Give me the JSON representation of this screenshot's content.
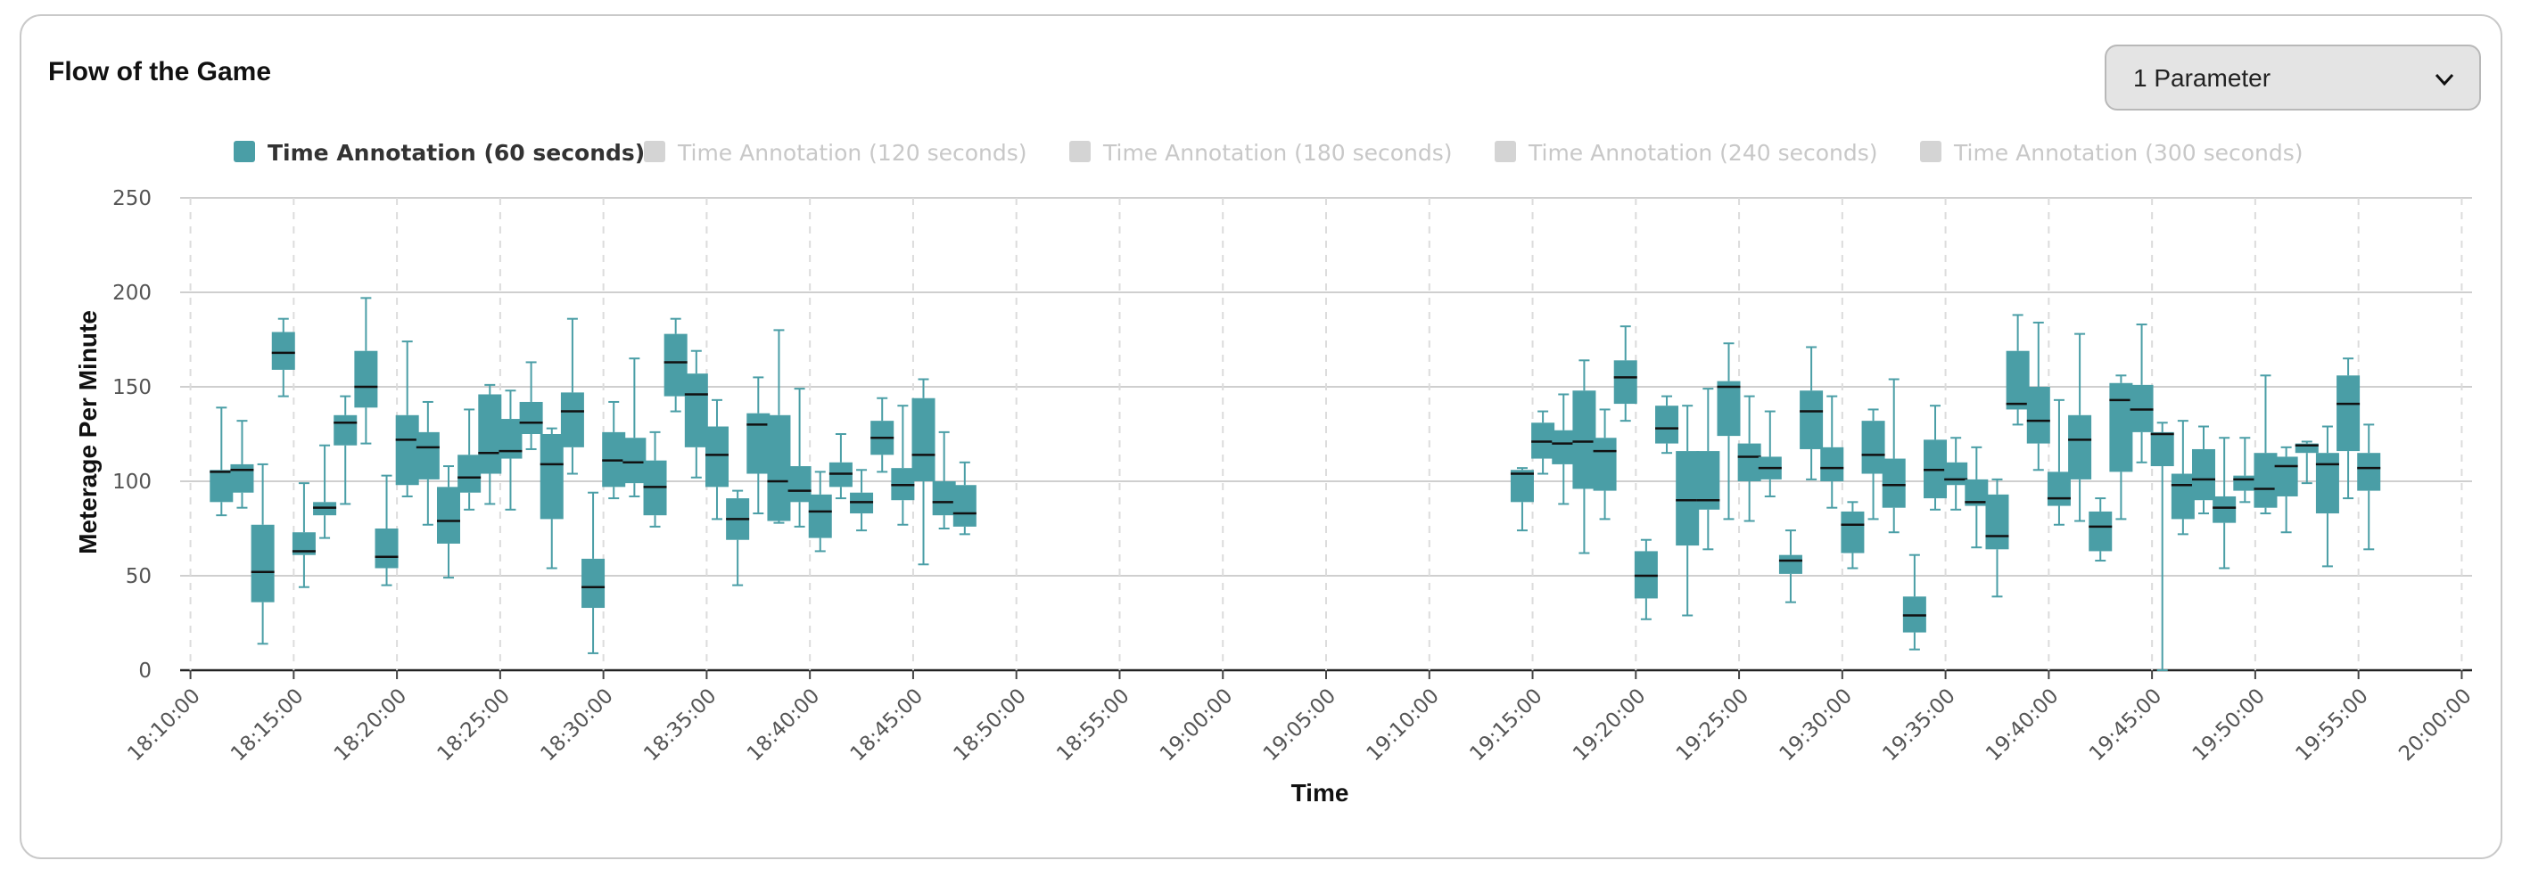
{
  "title": "Flow of the Game",
  "dropdown": {
    "value": "1 Parameter",
    "icon": "chevron-down-icon"
  },
  "colors": {
    "box": "#4a9ea6",
    "active_legend": "#4a9ea6",
    "inactive_legend": "#d4d4d4"
  },
  "chart_data": {
    "type": "box",
    "xlabel": "Time",
    "ylabel": "Meterage Per Minute",
    "ylim": [
      0,
      250
    ],
    "yticks": [
      0,
      50,
      100,
      150,
      200,
      250
    ],
    "xlim": [
      "18:09:30",
      "20:00:30"
    ],
    "xticks": [
      "18:10:00",
      "18:15:00",
      "18:20:00",
      "18:25:00",
      "18:30:00",
      "18:35:00",
      "18:40:00",
      "18:45:00",
      "18:50:00",
      "18:55:00",
      "19:00:00",
      "19:05:00",
      "19:10:00",
      "19:15:00",
      "19:20:00",
      "19:25:00",
      "19:30:00",
      "19:35:00",
      "19:40:00",
      "19:45:00",
      "19:50:00",
      "19:55:00",
      "20:00:00"
    ],
    "grid": "horizontal solid, vertical dashed",
    "legend_position": "top",
    "series": [
      {
        "name": "Time Annotation (60 seconds)",
        "active": true
      },
      {
        "name": "Time Annotation (120 seconds)",
        "active": false
      },
      {
        "name": "Time Annotation (180 seconds)",
        "active": false
      },
      {
        "name": "Time Annotation (240 seconds)",
        "active": false
      },
      {
        "name": "Time Annotation (300 seconds)",
        "active": false
      }
    ],
    "boxes": [
      {
        "t": "18:11:30",
        "min": 82,
        "q1": 89,
        "median": 105,
        "q3": 106,
        "max": 139
      },
      {
        "t": "18:12:30",
        "min": 86,
        "q1": 94,
        "median": 106,
        "q3": 109,
        "max": 132
      },
      {
        "t": "18:13:30",
        "min": 14,
        "q1": 36,
        "median": 52,
        "q3": 77,
        "max": 109
      },
      {
        "t": "18:14:30",
        "min": 145,
        "q1": 159,
        "median": 168,
        "q3": 179,
        "max": 186
      },
      {
        "t": "18:15:30",
        "min": 44,
        "q1": 61,
        "median": 63,
        "q3": 73,
        "max": 99
      },
      {
        "t": "18:16:30",
        "min": 70,
        "q1": 82,
        "median": 86,
        "q3": 89,
        "max": 119
      },
      {
        "t": "18:17:30",
        "min": 88,
        "q1": 119,
        "median": 131,
        "q3": 135,
        "max": 145
      },
      {
        "t": "18:18:30",
        "min": 120,
        "q1": 139,
        "median": 150,
        "q3": 169,
        "max": 197
      },
      {
        "t": "18:19:30",
        "min": 45,
        "q1": 54,
        "median": 60,
        "q3": 75,
        "max": 103
      },
      {
        "t": "18:20:30",
        "min": 92,
        "q1": 98,
        "median": 122,
        "q3": 135,
        "max": 174
      },
      {
        "t": "18:21:30",
        "min": 77,
        "q1": 101,
        "median": 118,
        "q3": 126,
        "max": 142
      },
      {
        "t": "18:22:30",
        "min": 49,
        "q1": 67,
        "median": 79,
        "q3": 97,
        "max": 108
      },
      {
        "t": "18:23:30",
        "min": 85,
        "q1": 94,
        "median": 102,
        "q3": 114,
        "max": 138
      },
      {
        "t": "18:24:30",
        "min": 88,
        "q1": 104,
        "median": 115,
        "q3": 146,
        "max": 151
      },
      {
        "t": "18:25:30",
        "min": 85,
        "q1": 112,
        "median": 116,
        "q3": 133,
        "max": 148
      },
      {
        "t": "18:26:30",
        "min": 117,
        "q1": 125,
        "median": 131,
        "q3": 142,
        "max": 163
      },
      {
        "t": "18:27:30",
        "min": 54,
        "q1": 80,
        "median": 109,
        "q3": 125,
        "max": 128
      },
      {
        "t": "18:28:30",
        "min": 104,
        "q1": 118,
        "median": 137,
        "q3": 147,
        "max": 186
      },
      {
        "t": "18:29:30",
        "min": 9,
        "q1": 33,
        "median": 44,
        "q3": 59,
        "max": 94
      },
      {
        "t": "18:30:30",
        "min": 91,
        "q1": 97,
        "median": 111,
        "q3": 126,
        "max": 142
      },
      {
        "t": "18:31:30",
        "min": 92,
        "q1": 99,
        "median": 110,
        "q3": 123,
        "max": 165
      },
      {
        "t": "18:32:30",
        "min": 76,
        "q1": 82,
        "median": 97,
        "q3": 111,
        "max": 126
      },
      {
        "t": "18:33:30",
        "min": 137,
        "q1": 145,
        "median": 163,
        "q3": 178,
        "max": 186
      },
      {
        "t": "18:34:30",
        "min": 102,
        "q1": 118,
        "median": 146,
        "q3": 157,
        "max": 169
      },
      {
        "t": "18:35:30",
        "min": 80,
        "q1": 97,
        "median": 114,
        "q3": 129,
        "max": 143
      },
      {
        "t": "18:36:30",
        "min": 45,
        "q1": 69,
        "median": 80,
        "q3": 91,
        "max": 95
      },
      {
        "t": "18:37:30",
        "min": 83,
        "q1": 104,
        "median": 130,
        "q3": 136,
        "max": 155
      },
      {
        "t": "18:38:30",
        "min": 78,
        "q1": 79,
        "median": 100,
        "q3": 135,
        "max": 180
      },
      {
        "t": "18:39:30",
        "min": 76,
        "q1": 89,
        "median": 95,
        "q3": 108,
        "max": 149
      },
      {
        "t": "18:40:30",
        "min": 63,
        "q1": 70,
        "median": 84,
        "q3": 93,
        "max": 105
      },
      {
        "t": "18:41:30",
        "min": 91,
        "q1": 97,
        "median": 104,
        "q3": 110,
        "max": 125
      },
      {
        "t": "18:42:30",
        "min": 74,
        "q1": 83,
        "median": 89,
        "q3": 94,
        "max": 106
      },
      {
        "t": "18:43:30",
        "min": 105,
        "q1": 114,
        "median": 123,
        "q3": 132,
        "max": 144
      },
      {
        "t": "18:44:30",
        "min": 77,
        "q1": 90,
        "median": 98,
        "q3": 107,
        "max": 140
      },
      {
        "t": "18:45:30",
        "min": 56,
        "q1": 100,
        "median": 114,
        "q3": 144,
        "max": 154
      },
      {
        "t": "18:46:30",
        "min": 75,
        "q1": 82,
        "median": 89,
        "q3": 100,
        "max": 126
      },
      {
        "t": "18:47:30",
        "min": 72,
        "q1": 76,
        "median": 83,
        "q3": 98,
        "max": 110
      },
      {
        "t": "19:14:30",
        "min": 74,
        "q1": 89,
        "median": 104,
        "q3": 106,
        "max": 107
      },
      {
        "t": "19:15:30",
        "min": 104,
        "q1": 112,
        "median": 121,
        "q3": 131,
        "max": 137
      },
      {
        "t": "19:16:30",
        "min": 88,
        "q1": 109,
        "median": 120,
        "q3": 127,
        "max": 146
      },
      {
        "t": "19:17:30",
        "min": 62,
        "q1": 96,
        "median": 121,
        "q3": 148,
        "max": 164
      },
      {
        "t": "19:18:30",
        "min": 80,
        "q1": 95,
        "median": 116,
        "q3": 123,
        "max": 138
      },
      {
        "t": "19:19:30",
        "min": 132,
        "q1": 141,
        "median": 155,
        "q3": 164,
        "max": 182
      },
      {
        "t": "19:20:30",
        "min": 27,
        "q1": 38,
        "median": 50,
        "q3": 63,
        "max": 69
      },
      {
        "t": "19:21:30",
        "min": 115,
        "q1": 120,
        "median": 128,
        "q3": 140,
        "max": 145
      },
      {
        "t": "19:22:30",
        "min": 29,
        "q1": 66,
        "median": 90,
        "q3": 116,
        "max": 140
      },
      {
        "t": "19:23:30",
        "min": 64,
        "q1": 85,
        "median": 90,
        "q3": 116,
        "max": 149
      },
      {
        "t": "19:24:30",
        "min": 80,
        "q1": 124,
        "median": 150,
        "q3": 153,
        "max": 173
      },
      {
        "t": "19:25:30",
        "min": 79,
        "q1": 100,
        "median": 113,
        "q3": 120,
        "max": 145
      },
      {
        "t": "19:26:30",
        "min": 92,
        "q1": 101,
        "median": 107,
        "q3": 113,
        "max": 137
      },
      {
        "t": "19:27:30",
        "min": 36,
        "q1": 51,
        "median": 58,
        "q3": 61,
        "max": 74
      },
      {
        "t": "19:28:30",
        "min": 101,
        "q1": 117,
        "median": 137,
        "q3": 148,
        "max": 171
      },
      {
        "t": "19:29:30",
        "min": 86,
        "q1": 100,
        "median": 107,
        "q3": 118,
        "max": 145
      },
      {
        "t": "19:30:30",
        "min": 54,
        "q1": 62,
        "median": 77,
        "q3": 84,
        "max": 89
      },
      {
        "t": "19:31:30",
        "min": 80,
        "q1": 104,
        "median": 114,
        "q3": 132,
        "max": 138
      },
      {
        "t": "19:32:30",
        "min": 73,
        "q1": 86,
        "median": 98,
        "q3": 112,
        "max": 154
      },
      {
        "t": "19:33:30",
        "min": 11,
        "q1": 20,
        "median": 29,
        "q3": 39,
        "max": 61
      },
      {
        "t": "19:34:30",
        "min": 85,
        "q1": 91,
        "median": 106,
        "q3": 122,
        "max": 140
      },
      {
        "t": "19:35:30",
        "min": 85,
        "q1": 98,
        "median": 101,
        "q3": 110,
        "max": 123
      },
      {
        "t": "19:36:30",
        "min": 65,
        "q1": 87,
        "median": 89,
        "q3": 101,
        "max": 118
      },
      {
        "t": "19:37:30",
        "min": 39,
        "q1": 64,
        "median": 71,
        "q3": 93,
        "max": 101
      },
      {
        "t": "19:38:30",
        "min": 130,
        "q1": 138,
        "median": 141,
        "q3": 169,
        "max": 188
      },
      {
        "t": "19:39:30",
        "min": 106,
        "q1": 120,
        "median": 132,
        "q3": 150,
        "max": 184
      },
      {
        "t": "19:40:30",
        "min": 77,
        "q1": 87,
        "median": 91,
        "q3": 105,
        "max": 143
      },
      {
        "t": "19:41:30",
        "min": 79,
        "q1": 101,
        "median": 122,
        "q3": 135,
        "max": 178
      },
      {
        "t": "19:42:30",
        "min": 58,
        "q1": 63,
        "median": 76,
        "q3": 84,
        "max": 91
      },
      {
        "t": "19:43:30",
        "min": 80,
        "q1": 105,
        "median": 143,
        "q3": 152,
        "max": 156
      },
      {
        "t": "19:44:30",
        "min": 110,
        "q1": 126,
        "median": 138,
        "q3": 151,
        "max": 183
      },
      {
        "t": "19:45:30",
        "min": 0,
        "q1": 108,
        "median": 125,
        "q3": 126,
        "max": 131
      },
      {
        "t": "19:46:30",
        "min": 72,
        "q1": 80,
        "median": 98,
        "q3": 104,
        "max": 132
      },
      {
        "t": "19:47:30",
        "min": 83,
        "q1": 90,
        "median": 101,
        "q3": 117,
        "max": 129
      },
      {
        "t": "19:48:30",
        "min": 54,
        "q1": 78,
        "median": 86,
        "q3": 92,
        "max": 123
      },
      {
        "t": "19:49:30",
        "min": 89,
        "q1": 95,
        "median": 101,
        "q3": 103,
        "max": 123
      },
      {
        "t": "19:50:30",
        "min": 83,
        "q1": 86,
        "median": 96,
        "q3": 115,
        "max": 156
      },
      {
        "t": "19:51:30",
        "min": 73,
        "q1": 92,
        "median": 108,
        "q3": 113,
        "max": 118
      },
      {
        "t": "19:52:30",
        "min": 99,
        "q1": 115,
        "median": 119,
        "q3": 120,
        "max": 121
      },
      {
        "t": "19:53:30",
        "min": 55,
        "q1": 83,
        "median": 109,
        "q3": 115,
        "max": 129
      },
      {
        "t": "19:54:30",
        "min": 91,
        "q1": 116,
        "median": 141,
        "q3": 156,
        "max": 165
      },
      {
        "t": "19:55:30",
        "min": 64,
        "q1": 95,
        "median": 107,
        "q3": 115,
        "max": 130
      }
    ]
  }
}
